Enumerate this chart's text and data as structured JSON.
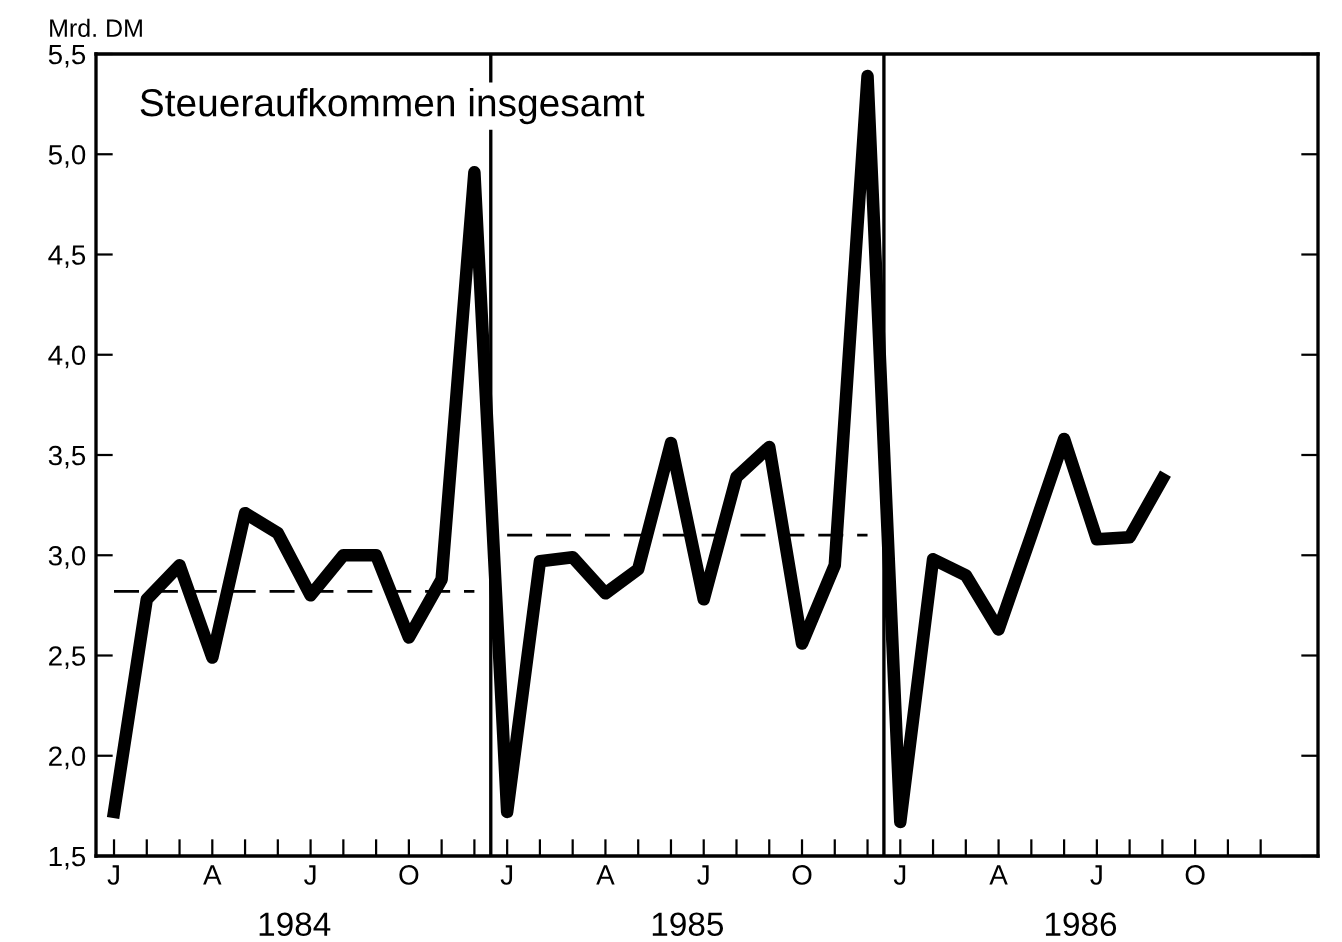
{
  "chart_data": {
    "type": "line",
    "title": "Steueraufkommen insgesamt",
    "ylabel": "Mrd. DM",
    "annotations": [
      "1984",
      "1985",
      "1986"
    ],
    "categories": [
      "J",
      null,
      null,
      "A",
      null,
      null,
      "J",
      null,
      null,
      "O",
      null,
      null,
      "J",
      null,
      null,
      "A",
      null,
      null,
      "J",
      null,
      null,
      "O",
      null,
      null,
      "J",
      null,
      null,
      "A",
      null,
      null,
      "J",
      null,
      null,
      "O",
      null,
      null
    ],
    "series": [
      {
        "color": "#000000",
        "values": [
          1.72,
          2.78,
          2.95,
          2.49,
          3.21,
          3.11,
          2.8,
          3.0,
          3.0,
          2.59,
          2.88,
          4.91,
          1.72,
          2.97,
          2.99,
          2.81,
          2.93,
          3.56,
          2.78,
          3.39,
          3.54,
          2.56,
          2.95,
          5.39,
          1.67,
          2.98,
          2.9,
          2.63,
          3.1,
          3.58,
          3.08,
          3.09,
          3.38,
          null,
          null,
          null
        ]
      },
      {
        "color": "#000000",
        "values": [
          2.82,
          2.82,
          2.82,
          2.82,
          2.82,
          2.82,
          2.82,
          2.82,
          2.82,
          2.82,
          2.82,
          2.82,
          null,
          null,
          null,
          null,
          null,
          null,
          null,
          null,
          null,
          null,
          null,
          null,
          null,
          null,
          null,
          null,
          null,
          null,
          null,
          null,
          null,
          null,
          null,
          null
        ],
        "line_style": "dashed"
      },
      {
        "color": "#000000",
        "values": [
          null,
          null,
          null,
          null,
          null,
          null,
          null,
          null,
          null,
          null,
          null,
          null,
          3.1,
          3.1,
          3.1,
          3.1,
          3.1,
          3.1,
          3.1,
          3.1,
          3.1,
          3.1,
          3.1,
          3.1,
          null,
          null,
          null,
          null,
          null,
          null,
          null,
          null,
          null,
          null,
          null,
          null
        ],
        "line_style": "dashed"
      }
    ],
    "ylim": [
      1.5,
      5.5
    ],
    "yticks": [
      {
        "value": 1.5,
        "label": "1,5"
      },
      {
        "value": 2.0,
        "label": "2,0"
      },
      {
        "value": 2.5,
        "label": "2,5"
      },
      {
        "value": 3.0,
        "label": "3,0"
      },
      {
        "value": 3.5,
        "label": "3,5"
      },
      {
        "value": 4.0,
        "label": "4,0"
      },
      {
        "value": 4.5,
        "label": "4,5"
      },
      {
        "value": 5.0,
        "label": "5,0"
      },
      {
        "value": 5.5,
        "label": "5,5"
      }
    ],
    "grid": false,
    "legend": false,
    "marker": "none",
    "line_style": "solid"
  }
}
